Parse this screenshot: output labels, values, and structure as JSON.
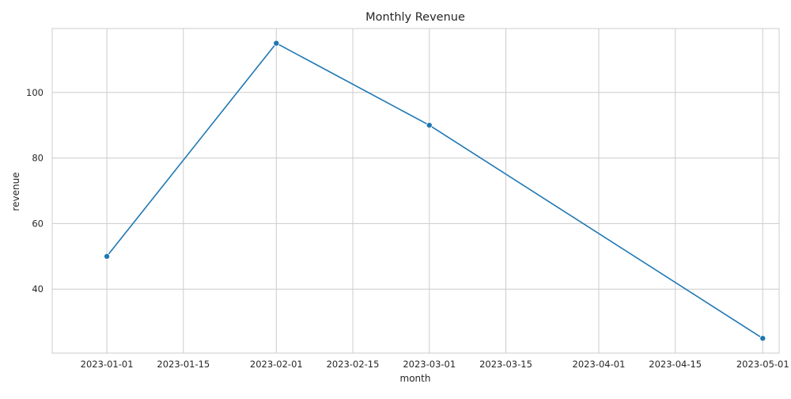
{
  "chart_data": {
    "type": "line",
    "title": "Monthly Revenue",
    "xlabel": "month",
    "ylabel": "revenue",
    "x": [
      "2023-01-01",
      "2023-02-01",
      "2023-03-01",
      "2023-05-01"
    ],
    "series": [
      {
        "values": [
          50,
          115,
          90,
          25
        ],
        "color": "#1f77b4"
      }
    ],
    "xlim": [
      "2022-12-22",
      "2023-05-04"
    ],
    "ylim": [
      20.5,
      119.5
    ],
    "x_ticks": [
      "2023-01-01",
      "2023-01-15",
      "2023-02-01",
      "2023-02-15",
      "2023-03-01",
      "2023-03-15",
      "2023-04-01",
      "2023-04-15",
      "2023-05-01"
    ],
    "y_ticks": [
      40,
      60,
      80,
      100
    ],
    "grid": true,
    "style": {
      "grid_color": "#cccccc",
      "frame_color": "#cccccc",
      "line_color": "#1f77b4",
      "background": "#ffffff"
    }
  }
}
